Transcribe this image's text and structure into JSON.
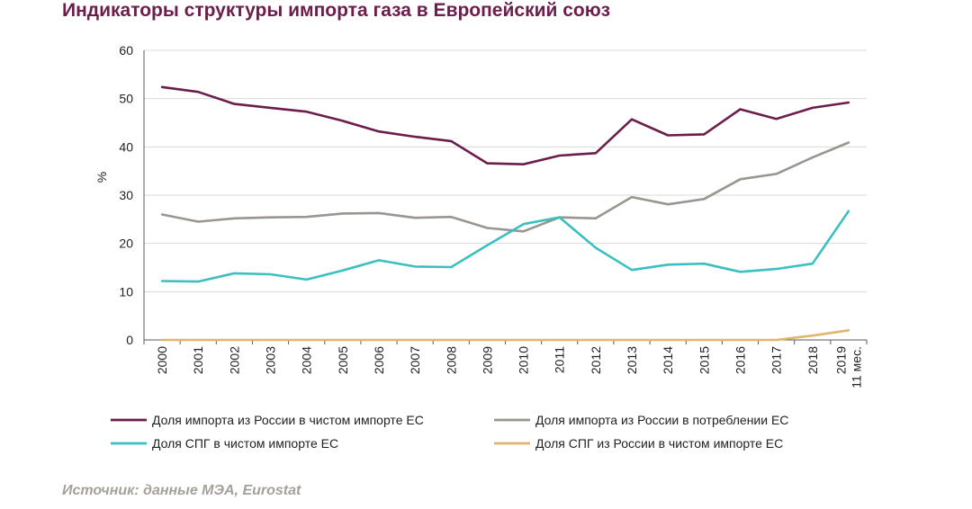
{
  "title": "Индикаторы структуры импорта газа в Европейский союз",
  "source": "Источник: данные МЭА, Eurostat",
  "chart_data": {
    "type": "line",
    "title": "Индикаторы структуры импорта газа в Европейский союз",
    "xlabel": "",
    "ylabel": "%",
    "ylim": [
      0,
      60
    ],
    "yticks": [
      0,
      10,
      20,
      30,
      40,
      50,
      60
    ],
    "grid": "horizontal",
    "legend_position": "bottom",
    "categories": [
      [
        "2000"
      ],
      [
        "2001"
      ],
      [
        "2002"
      ],
      [
        "2003"
      ],
      [
        "2004"
      ],
      [
        "2005"
      ],
      [
        "2006"
      ],
      [
        "2007"
      ],
      [
        "2008"
      ],
      [
        "2009"
      ],
      [
        "2010"
      ],
      [
        "2011"
      ],
      [
        "2012"
      ],
      [
        "2013"
      ],
      [
        "2014"
      ],
      [
        "2015"
      ],
      [
        "2016"
      ],
      [
        "2017"
      ],
      [
        "2018"
      ],
      [
        "2019",
        "11 мес."
      ]
    ],
    "series": [
      {
        "name": "Доля импорта из России в чистом импорте ЕС",
        "color": "#6b1e4a",
        "values": [
          52.4,
          51.4,
          48.9,
          48.1,
          47.3,
          45.4,
          43.2,
          42.1,
          41.2,
          36.6,
          36.4,
          38.2,
          38.7,
          45.7,
          42.4,
          42.6,
          47.8,
          45.8,
          48.1,
          49.2
        ]
      },
      {
        "name": "Доля импорта из России в потреблении ЕС",
        "color": "#9a968f",
        "values": [
          26.0,
          24.5,
          25.2,
          25.4,
          25.5,
          26.2,
          26.3,
          25.3,
          25.5,
          23.2,
          22.5,
          25.4,
          25.2,
          29.6,
          28.1,
          29.2,
          33.3,
          34.4,
          37.8,
          40.9
        ]
      },
      {
        "name": "Доля СПГ в чистом импорте ЕС",
        "color": "#3bbfc1",
        "values": [
          12.2,
          12.1,
          13.8,
          13.6,
          12.5,
          14.4,
          16.5,
          15.2,
          15.1,
          19.6,
          24.0,
          25.4,
          19.1,
          14.5,
          15.6,
          15.8,
          14.1,
          14.7,
          15.8,
          26.7
        ]
      },
      {
        "name": "Доля СПГ из России в чистом импорте ЕС",
        "color": "#e1b56b",
        "values": [
          0,
          0,
          0,
          0,
          0,
          0,
          0,
          0,
          0,
          0,
          0,
          0,
          0,
          0,
          0,
          0,
          0,
          0,
          0.9,
          2.0
        ]
      }
    ]
  }
}
